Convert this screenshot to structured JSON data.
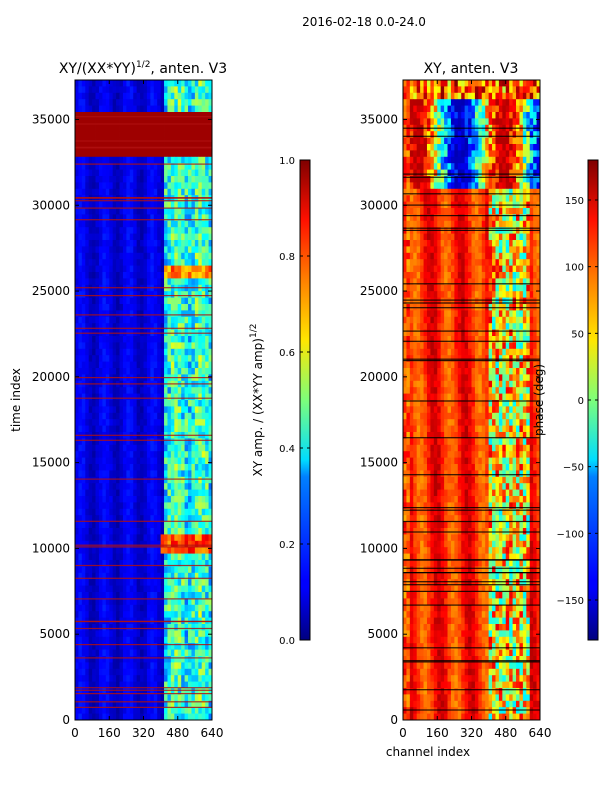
{
  "figure": {
    "suptitle": "2016-02-18 0.0-24.0"
  },
  "chart_data": [
    {
      "type": "heatmap",
      "title_text": "XY/(XX*YY)",
      "title_sup": "1/2",
      "title_suffix": ", anten. V3",
      "xlabel": "",
      "ylabel": "time index",
      "xlim": [
        0,
        640
      ],
      "ylim": [
        0,
        37300
      ],
      "x_ticks": [
        0,
        160,
        320,
        480,
        640
      ],
      "y_ticks": [
        0,
        5000,
        10000,
        15000,
        20000,
        25000,
        30000,
        35000
      ],
      "x_tick_labels": [
        "0",
        "160",
        "320",
        "480",
        "640"
      ],
      "y_tick_labels": [
        "0",
        "5000",
        "10000",
        "15000",
        "20000",
        "25000",
        "30000",
        "35000"
      ],
      "colormap": "jet",
      "colorbar": {
        "label_text": "XY amp. / (XX*YY amp)",
        "label_sup": "1/2",
        "range": [
          0.0,
          1.0
        ],
        "ticks": [
          0.0,
          0.2,
          0.4,
          0.6,
          0.8,
          1.0
        ],
        "tick_labels": [
          "0.0",
          "0.2",
          "0.4",
          "0.6",
          "0.8",
          "1.0"
        ]
      }
    },
    {
      "type": "heatmap",
      "title_text": "XY, anten. V3",
      "xlabel": "channel index",
      "ylabel": "",
      "xlim": [
        0,
        640
      ],
      "ylim": [
        0,
        37300
      ],
      "x_ticks": [
        0,
        160,
        320,
        480,
        640
      ],
      "y_ticks": [
        0,
        5000,
        10000,
        15000,
        20000,
        25000,
        30000,
        35000
      ],
      "x_tick_labels": [
        "0",
        "160",
        "320",
        "480",
        "640"
      ],
      "y_tick_labels": [
        "0",
        "5000",
        "10000",
        "15000",
        "20000",
        "25000",
        "30000",
        "35000"
      ],
      "colormap": "jet",
      "colorbar": {
        "label_text": "phase (deg)",
        "range": [
          -180,
          180
        ],
        "ticks": [
          -150,
          -100,
          -50,
          0,
          50,
          100,
          150
        ],
        "tick_labels": [
          "−150",
          "−100",
          "−50",
          "0",
          "50",
          "100",
          "150"
        ]
      }
    }
  ]
}
